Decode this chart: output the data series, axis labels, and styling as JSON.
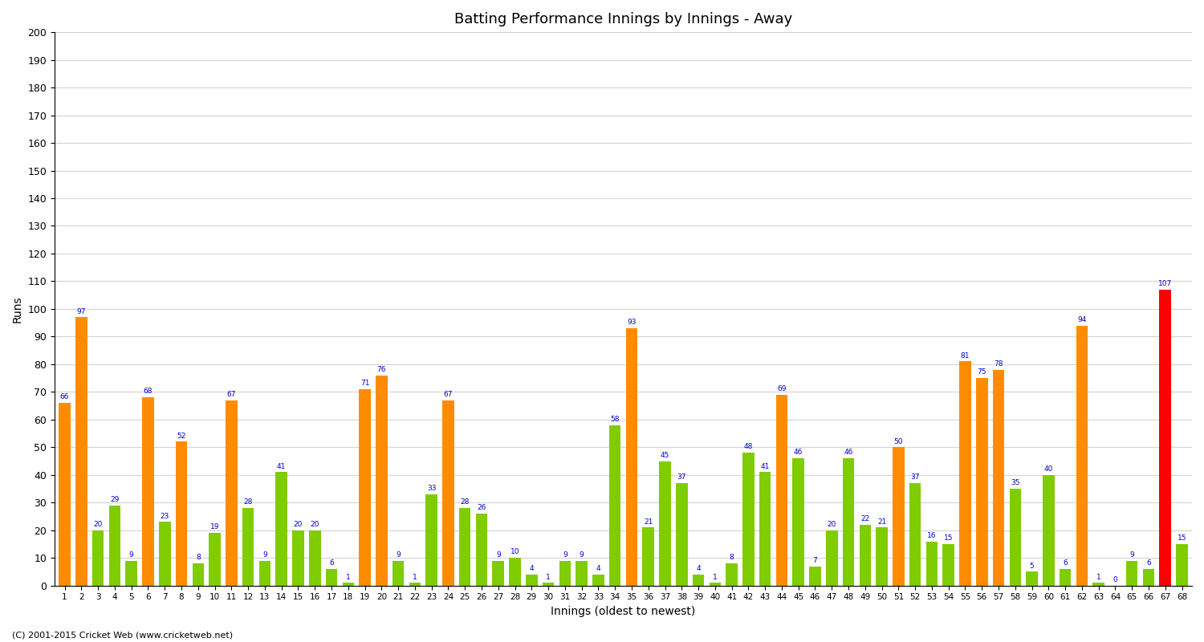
{
  "title": "Batting Performance Innings by Innings - Away",
  "xlabel": "Innings (oldest to newest)",
  "ylabel": "Runs",
  "ylim": [
    0,
    200
  ],
  "yticks": [
    0,
    10,
    20,
    30,
    40,
    50,
    60,
    70,
    80,
    90,
    100,
    110,
    120,
    130,
    140,
    150,
    160,
    170,
    180,
    190,
    200
  ],
  "bar_color_orange": "#FF8C00",
  "bar_color_green": "#7FCC00",
  "bar_color_red": "#FF0000",
  "label_color": "#0000CC",
  "innings_numbers": [
    1,
    2,
    3,
    4,
    5,
    6,
    7,
    8,
    9,
    10,
    11,
    12,
    13,
    14,
    15,
    16,
    17,
    18,
    19,
    20,
    21,
    22,
    23,
    24,
    25,
    26,
    27,
    28,
    29,
    30,
    31,
    32,
    33,
    34,
    35,
    36,
    37,
    38,
    39,
    40,
    41,
    42,
    43,
    44,
    45,
    46,
    47,
    48,
    49,
    50,
    51,
    52,
    53,
    54,
    55,
    56,
    57,
    58,
    59,
    60,
    61,
    62,
    63,
    64,
    65,
    66,
    67,
    68
  ],
  "values": [
    66,
    97,
    20,
    29,
    9,
    68,
    23,
    52,
    8,
    19,
    67,
    28,
    9,
    41,
    20,
    20,
    6,
    1,
    71,
    76,
    9,
    1,
    33,
    67,
    28,
    26,
    9,
    10,
    4,
    1,
    9,
    9,
    4,
    58,
    93,
    21,
    45,
    37,
    4,
    1,
    8,
    48,
    41,
    69,
    46,
    7,
    20,
    46,
    22,
    21,
    50,
    37,
    16,
    15,
    81,
    75,
    78,
    35,
    5,
    40,
    6,
    94,
    1,
    0,
    9,
    6,
    107,
    15
  ],
  "colors": [
    "o",
    "o",
    "g",
    "g",
    "g",
    "o",
    "g",
    "o",
    "g",
    "g",
    "o",
    "g",
    "g",
    "g",
    "g",
    "g",
    "g",
    "g",
    "o",
    "o",
    "g",
    "g",
    "g",
    "o",
    "g",
    "g",
    "g",
    "g",
    "g",
    "g",
    "g",
    "g",
    "g",
    "g",
    "o",
    "g",
    "g",
    "g",
    "g",
    "g",
    "g",
    "g",
    "g",
    "o",
    "g",
    "g",
    "g",
    "g",
    "g",
    "g",
    "o",
    "g",
    "g",
    "g",
    "o",
    "o",
    "o",
    "g",
    "g",
    "g",
    "g",
    "o",
    "g",
    "g",
    "g",
    "g",
    "r",
    "g"
  ],
  "footer": "(C) 2001-2015 Cricket Web (www.cricketweb.net)"
}
